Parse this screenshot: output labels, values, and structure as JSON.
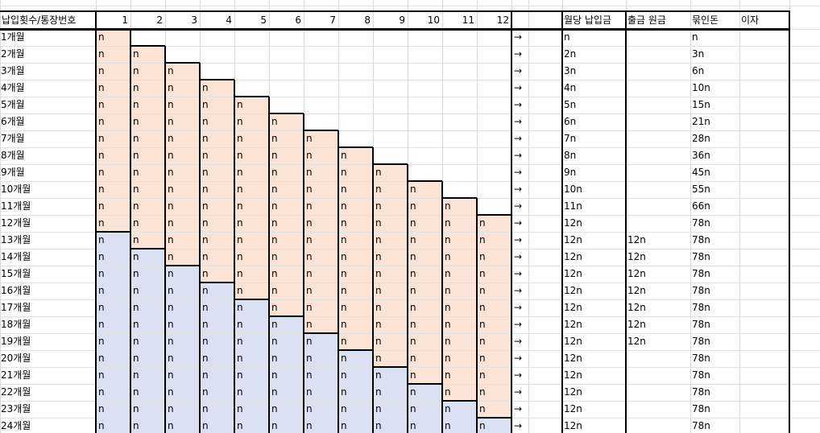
{
  "header": {
    "row_label_header": "납입횟수/통장번호",
    "account_numbers": [
      "1",
      "2",
      "3",
      "4",
      "5",
      "6",
      "7",
      "8",
      "9",
      "10",
      "11",
      "12"
    ],
    "monthly_deposit": "월당 납입금",
    "withdrawal_principal": "출금 원금",
    "locked_money": "묶인돈",
    "interest": "이자"
  },
  "cell_symbol": "n",
  "arrow_symbol": "→",
  "month_labels": [
    "1개월",
    "2개월",
    "3개월",
    "4개월",
    "5개월",
    "6개월",
    "7개월",
    "8개월",
    "9개월",
    "10개월",
    "11개월",
    "12개월",
    "13개월",
    "14개월",
    "15개월",
    "16개월",
    "17개월",
    "18개월",
    "19개월",
    "20개월",
    "21개월",
    "22개월",
    "23개월",
    "24개월"
  ],
  "monthly_deposit_values": [
    "n",
    "2n",
    "3n",
    "4n",
    "5n",
    "6n",
    "7n",
    "8n",
    "9n",
    "10n",
    "11n",
    "12n",
    "12n",
    "12n",
    "12n",
    "12n",
    "12n",
    "12n",
    "12n",
    "12n",
    "12n",
    "12n",
    "12n",
    "12n"
  ],
  "withdrawal_values": [
    "",
    "",
    "",
    "",
    "",
    "",
    "",
    "",
    "",
    "",
    "",
    "",
    "12n",
    "12n",
    "12n",
    "12n",
    "12n",
    "12n",
    "12n",
    "",
    "",
    "",
    "",
    ""
  ],
  "locked_values": [
    "n",
    "3n",
    "6n",
    "10n",
    "15n",
    "21n",
    "28n",
    "36n",
    "45n",
    "55n",
    "66n",
    "78n",
    "78n",
    "78n",
    "78n",
    "78n",
    "78n",
    "78n",
    "78n",
    "78n",
    "78n",
    "78n",
    "78n",
    "78n"
  ],
  "interest_values": [
    "",
    "",
    "",
    "",
    "",
    "",
    "",
    "",
    "",
    "",
    "",
    "",
    "",
    "",
    "",
    "",
    "",
    "",
    "",
    "",
    "",
    "",
    "",
    ""
  ],
  "colors": {
    "deposit_fill": "#fbe4d6",
    "withdraw_fill": "#d9e1f2",
    "gridline": "#d9d9d9",
    "border": "#000000"
  }
}
